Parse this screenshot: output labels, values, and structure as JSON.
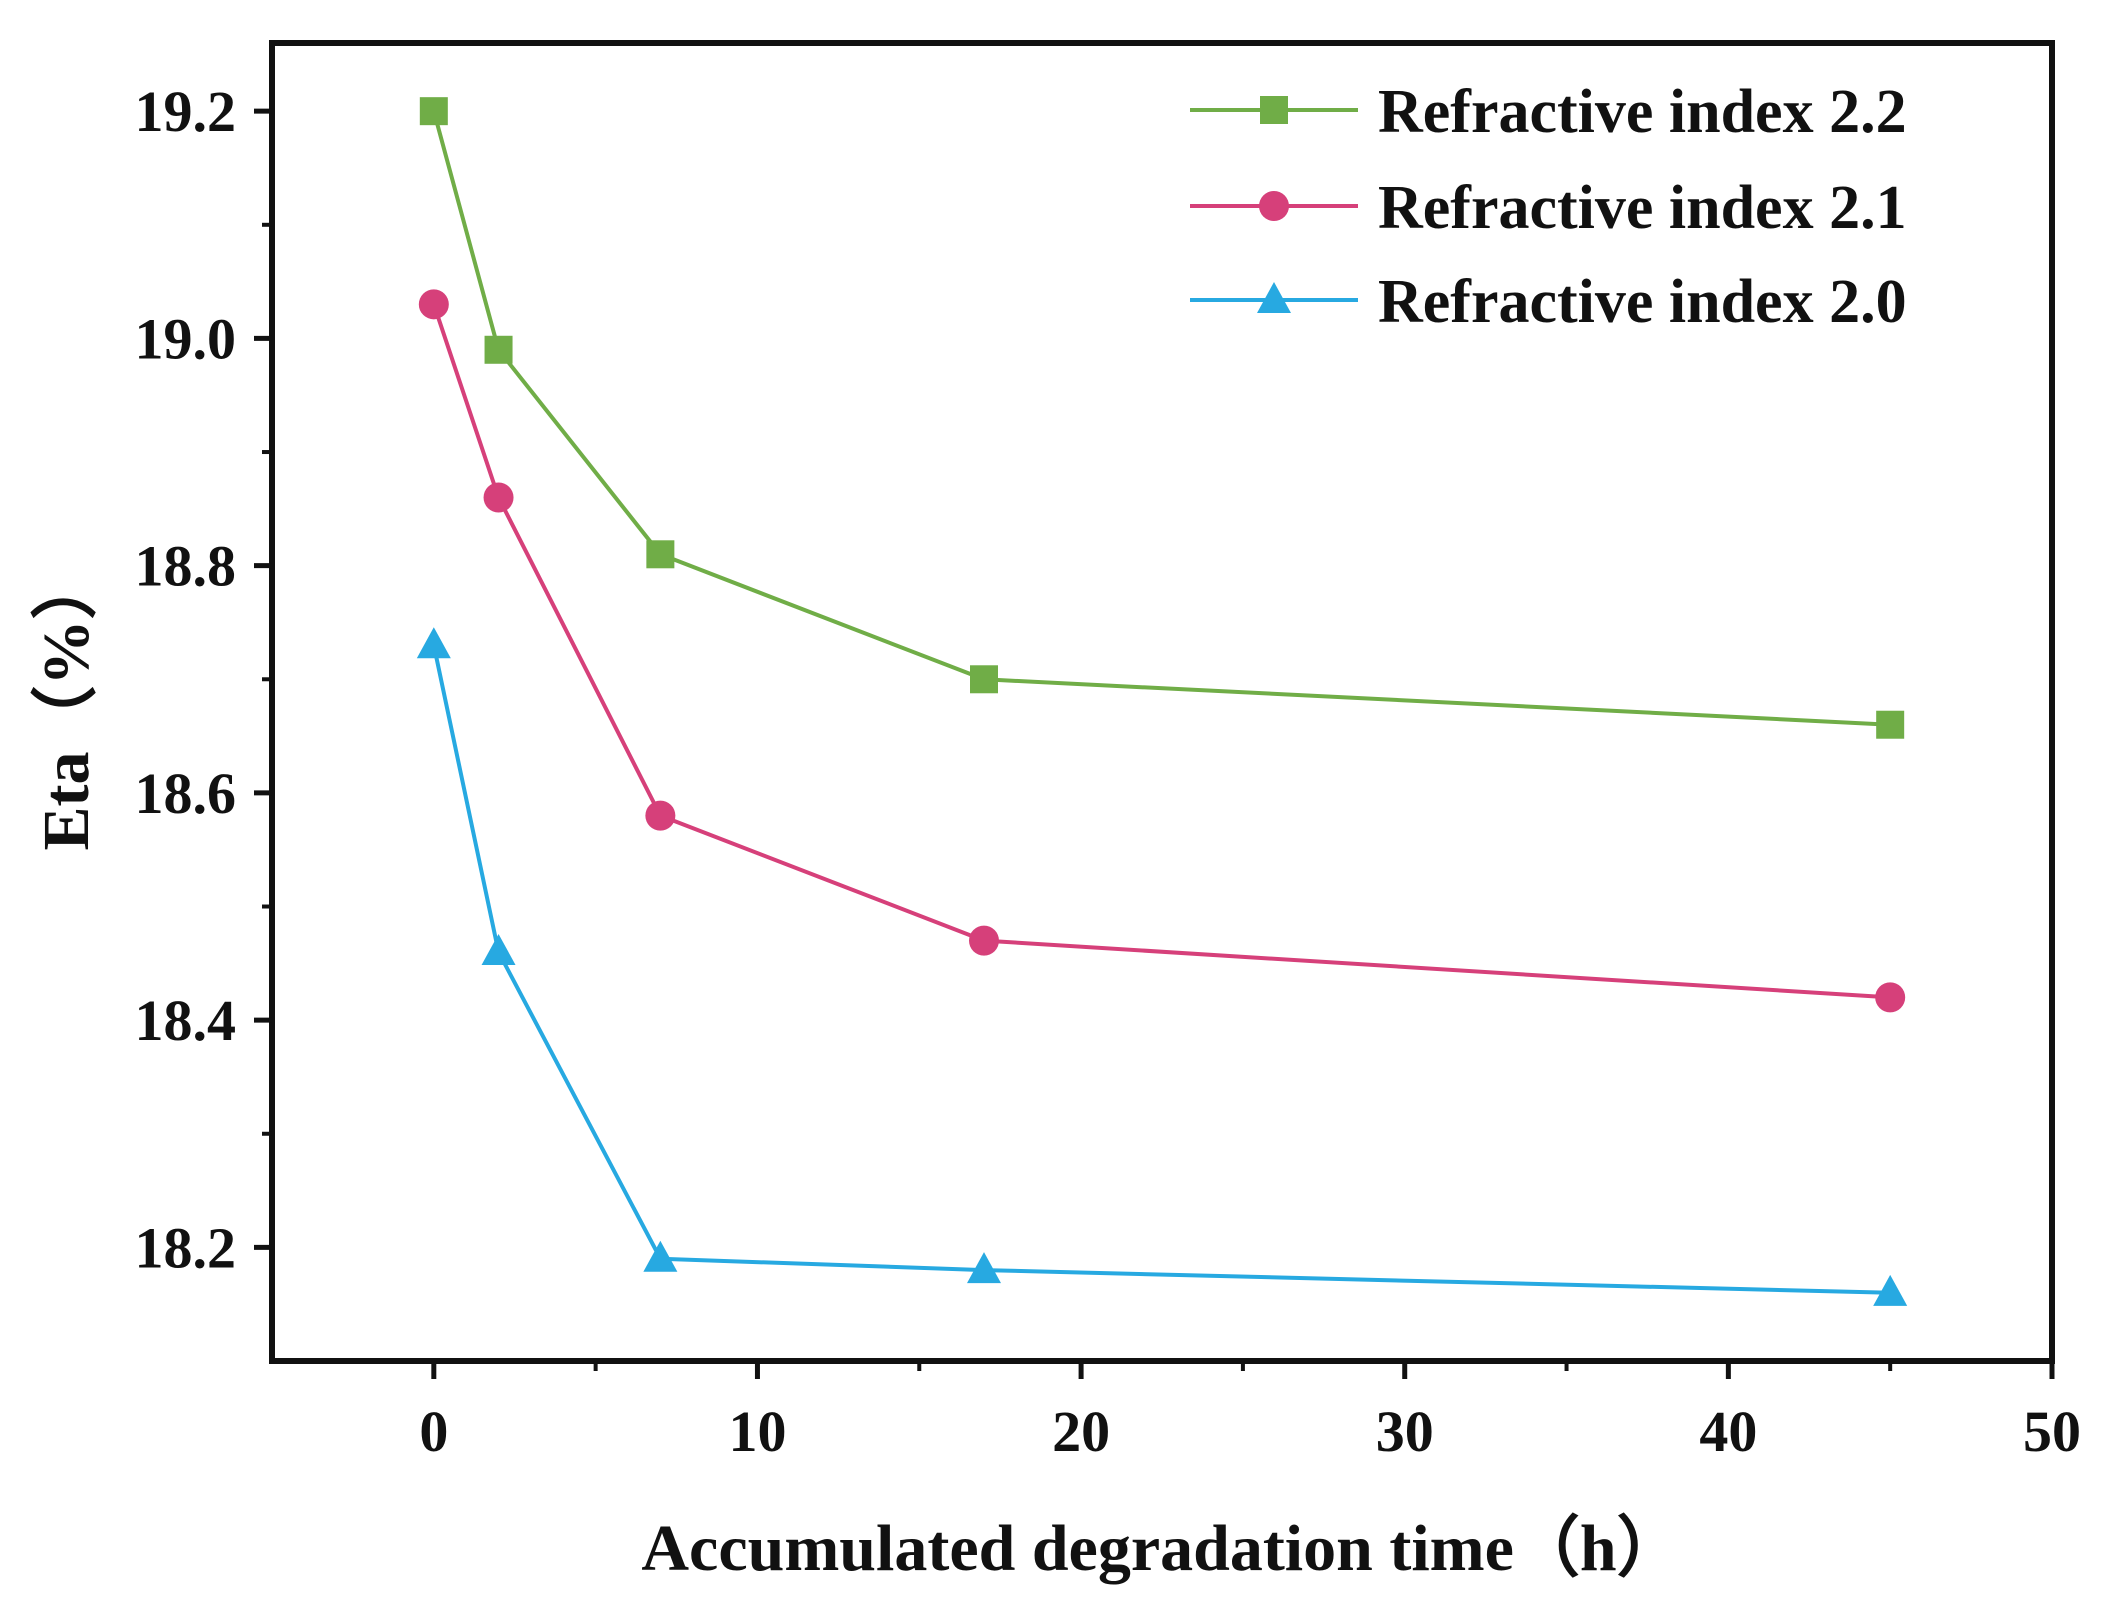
{
  "chart_data": {
    "type": "line",
    "title": "",
    "xlabel": "Accumulated degradation time（h）",
    "ylabel": "Eta（%）",
    "xlim": [
      -5,
      50
    ],
    "ylim": [
      18.1,
      19.26
    ],
    "xticks": [
      0,
      10,
      20,
      30,
      40,
      50
    ],
    "xtick_labels": [
      "0",
      "10",
      "20",
      "30",
      "40",
      "50"
    ],
    "xminor": [
      5,
      15,
      25,
      35,
      45
    ],
    "yticks": [
      18.2,
      18.4,
      18.6,
      18.8,
      19.0,
      19.2
    ],
    "ytick_labels": [
      "18.2",
      "18.4",
      "18.6",
      "18.8",
      "19.0",
      "19.2"
    ],
    "yminor": [
      18.3,
      18.5,
      18.7,
      18.9,
      19.1
    ],
    "grid": false,
    "legend_position": "top-right",
    "x": [
      0,
      2,
      7,
      17,
      45
    ],
    "series": [
      {
        "name": "Refractive index 2.2",
        "marker": "square",
        "color": "#70ad47",
        "values": [
          19.2,
          18.99,
          18.81,
          18.7,
          18.66
        ]
      },
      {
        "name": "Refractive index 2.1",
        "marker": "circle",
        "color": "#d6407a",
        "values": [
          19.03,
          18.86,
          18.58,
          18.47,
          18.42
        ]
      },
      {
        "name": "Refractive index 2.0",
        "marker": "triangle",
        "color": "#27a9e1",
        "values": [
          18.73,
          18.46,
          18.19,
          18.18,
          18.16
        ]
      }
    ]
  }
}
